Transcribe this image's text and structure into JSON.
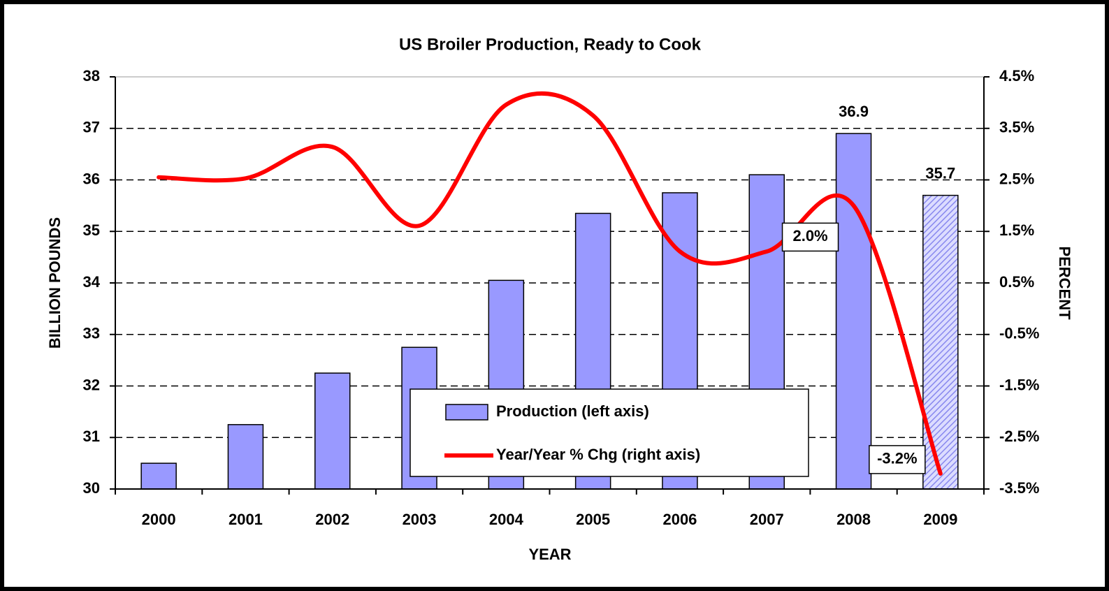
{
  "chart_data": {
    "type": "bar_line",
    "title": "US Broiler Production, Ready to Cook",
    "x_label": "YEAR",
    "y_label": "BILLION POUNDS",
    "y2_label": "PERCENT",
    "categories": [
      "2000",
      "2001",
      "2002",
      "2003",
      "2004",
      "2005",
      "2006",
      "2007",
      "2008",
      "2009"
    ],
    "ylim": [
      30,
      38
    ],
    "yticks": [
      30,
      31,
      32,
      33,
      34,
      35,
      36,
      37,
      38
    ],
    "y2lim": [
      -3.5,
      4.5
    ],
    "y2ticks": [
      {
        "value": -3.5,
        "label": "-3.5%"
      },
      {
        "value": -2.5,
        "label": "-2.5%"
      },
      {
        "value": -1.5,
        "label": "-1.5%"
      },
      {
        "value": -0.5,
        "label": "-0.5%"
      },
      {
        "value": 0.5,
        "label": "0.5%"
      },
      {
        "value": 1.5,
        "label": "1.5%"
      },
      {
        "value": 2.5,
        "label": "2.5%"
      },
      {
        "value": 3.5,
        "label": "3.5%"
      },
      {
        "value": 4.5,
        "label": "4.5%"
      }
    ],
    "grid": true,
    "series": [
      {
        "name": "Production (left axis)",
        "type": "bar",
        "color": "#9999ff",
        "hatched_index": 9,
        "values": [
          30.5,
          31.25,
          32.25,
          32.75,
          34.05,
          35.35,
          35.75,
          36.1,
          36.9,
          35.7
        ],
        "value_labels": [
          null,
          null,
          null,
          null,
          null,
          null,
          null,
          null,
          "36.9",
          "35.7"
        ]
      },
      {
        "name": "Year/Year % Chg (right axis)",
        "type": "line",
        "axis": "y2",
        "color": "#ff0000",
        "values": [
          2.55,
          2.53,
          3.14,
          1.61,
          3.96,
          3.75,
          1.11,
          1.11,
          2.0,
          -3.2
        ],
        "value_labels": [
          null,
          null,
          null,
          null,
          null,
          null,
          null,
          null,
          "2.0%",
          "-3.2%"
        ]
      }
    ]
  }
}
